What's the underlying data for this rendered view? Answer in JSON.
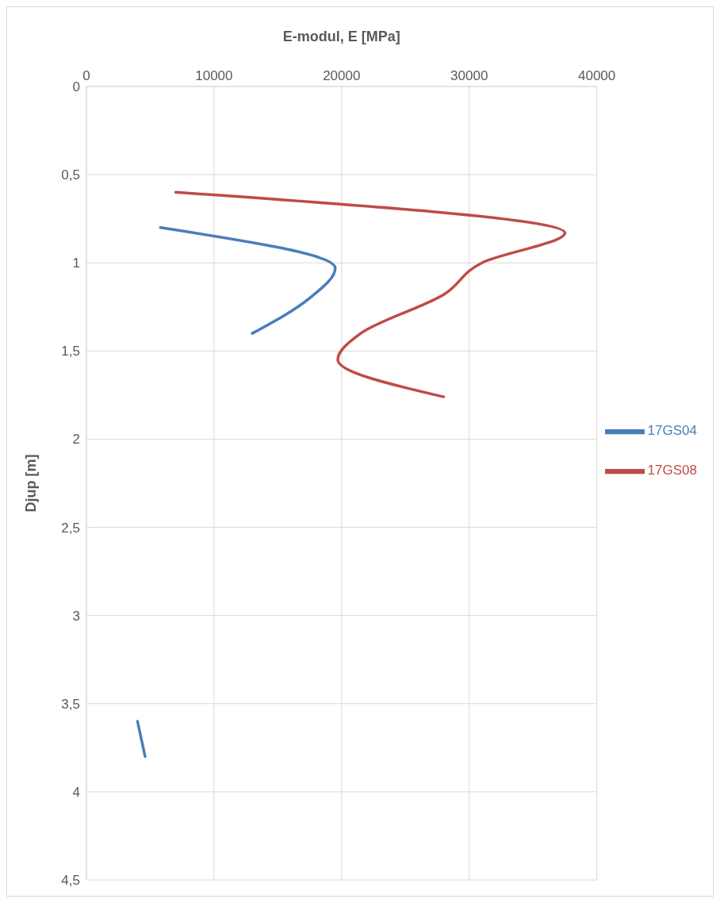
{
  "chart_data": {
    "type": "line",
    "xlabel": "E-modul, E [MPa]",
    "ylabel": "Djup [m]",
    "xlim": [
      0,
      40000
    ],
    "xticks": [
      0,
      10000,
      20000,
      30000,
      40000
    ],
    "ylim": [
      4.5,
      0
    ],
    "yticks": [
      0,
      {
        "value": 0.5,
        "label": "0,5"
      },
      1,
      {
        "value": 1.5,
        "label": "1,5"
      },
      2,
      {
        "value": 2.5,
        "label": "2,5"
      },
      3,
      {
        "value": 3.5,
        "label": "3,5"
      },
      4,
      {
        "value": 4.5,
        "label": "4,5"
      }
    ],
    "grid": true,
    "legend": "right",
    "marker": "none",
    "line_style": "solid",
    "series": [
      {
        "name": "17GS04",
        "color": "#4a7ebb",
        "x": [
          5800,
          19500,
          17500,
          13000,
          null,
          4000,
          4600
        ],
        "values": [
          0.8,
          1.03,
          1.2,
          1.4,
          null,
          3.6,
          3.8
        ]
      },
      {
        "name": "17GS08",
        "color": "#be4b48",
        "x": [
          7000,
          37500,
          31000,
          28000,
          21500,
          19700,
          28000
        ],
        "values": [
          0.6,
          0.83,
          1.0,
          1.18,
          1.4,
          1.55,
          1.76
        ]
      }
    ]
  }
}
